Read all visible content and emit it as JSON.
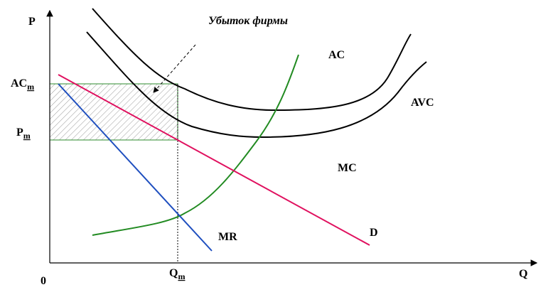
{
  "axes": {
    "y_label": "P",
    "x_label": "Q",
    "origin": "0"
  },
  "price_labels": [
    {
      "text": "AC",
      "sub": "m"
    },
    {
      "text": "P",
      "sub": "m"
    }
  ],
  "quantity_label": {
    "text": "Q",
    "sub": "m"
  },
  "curves": {
    "ac": "AC",
    "avc": "AVC",
    "mc": "MC",
    "d": "D",
    "mr": "MR"
  },
  "annotation": "Убыток фирмы"
}
